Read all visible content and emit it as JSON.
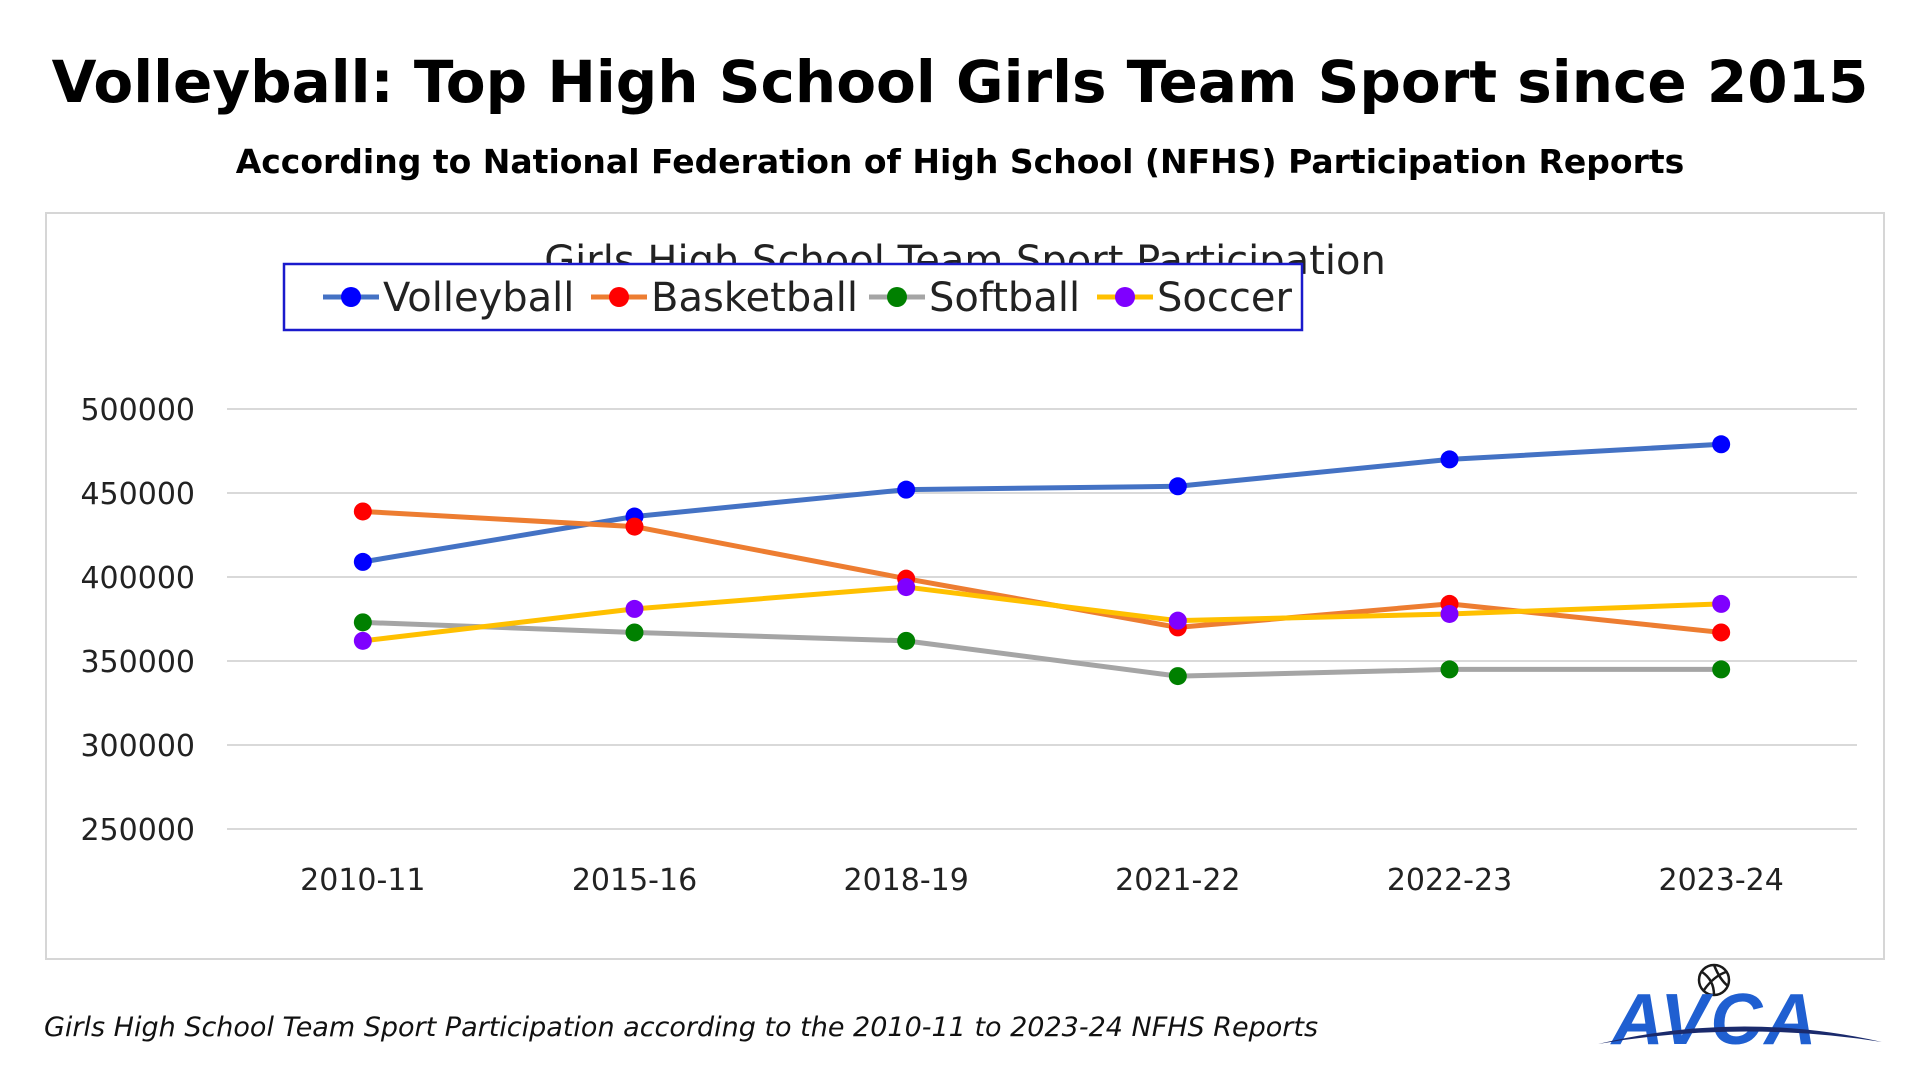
{
  "header": {
    "title": "Volleyball: Top High School Girls Team Sport since 2015",
    "subtitle": "According to National Federation of High School (NFHS) Participation Reports"
  },
  "chart_data": {
    "type": "line",
    "title": "Girls High School Team Sport Participation",
    "xlabel": "",
    "ylabel": "",
    "categories": [
      "2010-11",
      "2015-16",
      "2018-19",
      "2021-22",
      "2022-23",
      "2023-24"
    ],
    "y_ticks": [
      "250000",
      "300000",
      "350000",
      "400000",
      "450000",
      "500000"
    ],
    "ylim": [
      250000,
      500000
    ],
    "grid": true,
    "legend_position": "top-center",
    "series": [
      {
        "name": "Volleyball",
        "line_color": "#4472C4",
        "marker_color": "#0000FF",
        "values": [
          409000,
          436000,
          452000,
          454000,
          470000,
          479000
        ]
      },
      {
        "name": "Basketball",
        "line_color": "#ED7D31",
        "marker_color": "#FF0000",
        "values": [
          439000,
          430000,
          399000,
          370000,
          384000,
          367000
        ]
      },
      {
        "name": "Softball",
        "line_color": "#A5A5A5",
        "marker_color": "#008000",
        "values": [
          373000,
          367000,
          362000,
          341000,
          345000,
          345000
        ]
      },
      {
        "name": "Soccer",
        "line_color": "#FFC000",
        "marker_color": "#7F00FF",
        "values": [
          362000,
          381000,
          394000,
          374000,
          378000,
          384000
        ]
      }
    ]
  },
  "footer": {
    "caption": "Girls High School Team Sport Participation according to the 2010-11 to 2023-24 NFHS Reports",
    "logo_text": "AVCA",
    "logo_icon": "volleyball-icon",
    "logo_color": "#1F5FD1"
  }
}
